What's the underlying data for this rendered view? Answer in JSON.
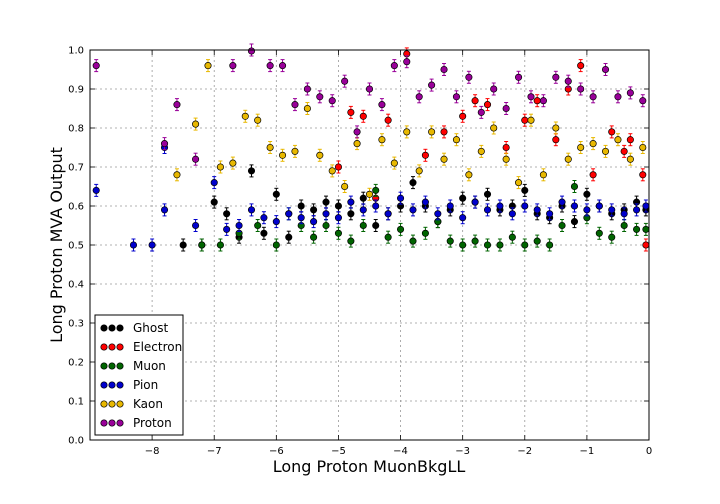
{
  "chart_data": {
    "type": "scatter",
    "xlabel": "Long Proton MuonBkgLL",
    "ylabel": "Long Proton MVA Output",
    "xlim": [
      -9.0,
      0.0
    ],
    "ylim": [
      0.0,
      1.0
    ],
    "xticks": [
      -8,
      -7,
      -6,
      -5,
      -4,
      -3,
      -2,
      -1,
      0
    ],
    "yticks": [
      0.0,
      0.1,
      0.2,
      0.3,
      0.4,
      0.5,
      0.6,
      0.7,
      0.8,
      0.9,
      1.0
    ],
    "xtick_labels": [
      "−8",
      "−7",
      "−6",
      "−5",
      "−4",
      "−3",
      "−2",
      "−1",
      "0"
    ],
    "ytick_labels": [
      "0.0",
      "0.1",
      "0.2",
      "0.3",
      "0.4",
      "0.5",
      "0.6",
      "0.7",
      "0.8",
      "0.9",
      "1.0"
    ],
    "grid": true,
    "legend_position": "lower-left",
    "series": [
      {
        "name": "Ghost",
        "color": "#000000",
        "points": [
          [
            -7.5,
            0.5
          ],
          [
            -7.2,
            0.5
          ],
          [
            -7.0,
            0.61
          ],
          [
            -6.8,
            0.58
          ],
          [
            -6.6,
            0.52
          ],
          [
            -6.4,
            0.69
          ],
          [
            -6.2,
            0.53
          ],
          [
            -6.0,
            0.63
          ],
          [
            -5.8,
            0.52
          ],
          [
            -5.6,
            0.6
          ],
          [
            -5.4,
            0.59
          ],
          [
            -5.2,
            0.61
          ],
          [
            -5.0,
            0.6
          ],
          [
            -4.8,
            0.58
          ],
          [
            -4.6,
            0.62
          ],
          [
            -4.4,
            0.55
          ],
          [
            -4.2,
            0.58
          ],
          [
            -4.0,
            0.6
          ],
          [
            -3.8,
            0.66
          ],
          [
            -3.6,
            0.6
          ],
          [
            -3.4,
            0.56
          ],
          [
            -3.2,
            0.59
          ],
          [
            -3.0,
            0.62
          ],
          [
            -2.8,
            0.61
          ],
          [
            -2.6,
            0.63
          ],
          [
            -2.4,
            0.59
          ],
          [
            -2.2,
            0.6
          ],
          [
            -2.0,
            0.64
          ],
          [
            -1.8,
            0.58
          ],
          [
            -1.6,
            0.57
          ],
          [
            -1.4,
            0.6
          ],
          [
            -1.2,
            0.56
          ],
          [
            -1.0,
            0.63
          ],
          [
            -0.8,
            0.6
          ],
          [
            -0.6,
            0.58
          ],
          [
            -0.4,
            0.59
          ],
          [
            -0.2,
            0.61
          ],
          [
            -0.05,
            0.59
          ]
        ]
      },
      {
        "name": "Electron",
        "color": "#ff0000",
        "points": [
          [
            -5.0,
            0.7
          ],
          [
            -4.8,
            0.84
          ],
          [
            -4.6,
            0.83
          ],
          [
            -4.4,
            0.62
          ],
          [
            -4.2,
            0.82
          ],
          [
            -3.9,
            0.99
          ],
          [
            -3.6,
            0.73
          ],
          [
            -3.3,
            0.79
          ],
          [
            -3.0,
            0.83
          ],
          [
            -2.8,
            0.87
          ],
          [
            -2.6,
            0.86
          ],
          [
            -2.3,
            0.75
          ],
          [
            -2.0,
            0.82
          ],
          [
            -1.8,
            0.87
          ],
          [
            -1.5,
            0.77
          ],
          [
            -1.3,
            0.9
          ],
          [
            -1.1,
            0.96
          ],
          [
            -0.9,
            0.68
          ],
          [
            -0.6,
            0.79
          ],
          [
            -0.4,
            0.74
          ],
          [
            -0.3,
            0.77
          ],
          [
            -0.1,
            0.68
          ],
          [
            -0.05,
            0.5
          ]
        ]
      },
      {
        "name": "Muon",
        "color": "#006400",
        "points": [
          [
            -7.2,
            0.5
          ],
          [
            -6.9,
            0.5
          ],
          [
            -6.6,
            0.53
          ],
          [
            -6.3,
            0.55
          ],
          [
            -6.0,
            0.5
          ],
          [
            -5.8,
            0.58
          ],
          [
            -5.6,
            0.55
          ],
          [
            -5.4,
            0.52
          ],
          [
            -5.2,
            0.55
          ],
          [
            -5.0,
            0.53
          ],
          [
            -4.8,
            0.51
          ],
          [
            -4.6,
            0.55
          ],
          [
            -4.4,
            0.64
          ],
          [
            -4.2,
            0.52
          ],
          [
            -4.0,
            0.54
          ],
          [
            -3.8,
            0.51
          ],
          [
            -3.6,
            0.53
          ],
          [
            -3.4,
            0.56
          ],
          [
            -3.2,
            0.51
          ],
          [
            -3.0,
            0.5
          ],
          [
            -2.8,
            0.51
          ],
          [
            -2.6,
            0.5
          ],
          [
            -2.4,
            0.5
          ],
          [
            -2.2,
            0.52
          ],
          [
            -2.0,
            0.5
          ],
          [
            -1.8,
            0.51
          ],
          [
            -1.6,
            0.5
          ],
          [
            -1.4,
            0.55
          ],
          [
            -1.2,
            0.65
          ],
          [
            -1.0,
            0.57
          ],
          [
            -0.8,
            0.53
          ],
          [
            -0.6,
            0.52
          ],
          [
            -0.4,
            0.55
          ],
          [
            -0.2,
            0.54
          ],
          [
            -0.05,
            0.54
          ]
        ]
      },
      {
        "name": "Pion",
        "color": "#0000cc",
        "points": [
          [
            -8.9,
            0.64
          ],
          [
            -8.3,
            0.5
          ],
          [
            -8.0,
            0.5
          ],
          [
            -7.8,
            0.59
          ],
          [
            -7.3,
            0.55
          ],
          [
            -7.0,
            0.66
          ],
          [
            -6.8,
            0.54
          ],
          [
            -6.6,
            0.55
          ],
          [
            -6.4,
            0.59
          ],
          [
            -6.2,
            0.57
          ],
          [
            -6.0,
            0.56
          ],
          [
            -5.8,
            0.58
          ],
          [
            -5.6,
            0.57
          ],
          [
            -5.4,
            0.56
          ],
          [
            -5.2,
            0.58
          ],
          [
            -5.0,
            0.57
          ],
          [
            -4.8,
            0.61
          ],
          [
            -4.6,
            0.59
          ],
          [
            -4.4,
            0.6
          ],
          [
            -4.2,
            0.58
          ],
          [
            -4.0,
            0.62
          ],
          [
            -3.8,
            0.59
          ],
          [
            -3.6,
            0.61
          ],
          [
            -3.4,
            0.58
          ],
          [
            -3.2,
            0.6
          ],
          [
            -3.0,
            0.57
          ],
          [
            -2.8,
            0.61
          ],
          [
            -2.6,
            0.59
          ],
          [
            -2.4,
            0.6
          ],
          [
            -2.2,
            0.58
          ],
          [
            -2.0,
            0.6
          ],
          [
            -1.8,
            0.59
          ],
          [
            -1.6,
            0.58
          ],
          [
            -1.4,
            0.61
          ],
          [
            -1.2,
            0.6
          ],
          [
            -1.0,
            0.59
          ],
          [
            -0.8,
            0.6
          ],
          [
            -0.6,
            0.59
          ],
          [
            -0.4,
            0.58
          ],
          [
            -0.2,
            0.59
          ],
          [
            -0.05,
            0.6
          ],
          [
            -7.8,
            0.75
          ]
        ]
      },
      {
        "name": "Kaon",
        "color": "#e8b800",
        "points": [
          [
            -7.6,
            0.68
          ],
          [
            -7.3,
            0.81
          ],
          [
            -7.1,
            0.96
          ],
          [
            -6.9,
            0.7
          ],
          [
            -6.7,
            0.71
          ],
          [
            -6.5,
            0.83
          ],
          [
            -6.3,
            0.82
          ],
          [
            -6.1,
            0.75
          ],
          [
            -5.9,
            0.73
          ],
          [
            -5.7,
            0.74
          ],
          [
            -5.5,
            0.85
          ],
          [
            -5.3,
            0.73
          ],
          [
            -5.1,
            0.69
          ],
          [
            -4.9,
            0.65
          ],
          [
            -4.7,
            0.76
          ],
          [
            -4.5,
            0.63
          ],
          [
            -4.3,
            0.77
          ],
          [
            -4.1,
            0.71
          ],
          [
            -3.9,
            0.79
          ],
          [
            -3.7,
            0.69
          ],
          [
            -3.5,
            0.79
          ],
          [
            -3.3,
            0.72
          ],
          [
            -3.1,
            0.77
          ],
          [
            -2.9,
            0.68
          ],
          [
            -2.7,
            0.74
          ],
          [
            -2.5,
            0.8
          ],
          [
            -2.3,
            0.72
          ],
          [
            -2.1,
            0.66
          ],
          [
            -1.9,
            0.82
          ],
          [
            -1.7,
            0.68
          ],
          [
            -1.5,
            0.8
          ],
          [
            -1.3,
            0.72
          ],
          [
            -1.1,
            0.75
          ],
          [
            -0.9,
            0.76
          ],
          [
            -0.7,
            0.74
          ],
          [
            -0.5,
            0.77
          ],
          [
            -0.3,
            0.72
          ],
          [
            -0.1,
            0.75
          ]
        ]
      },
      {
        "name": "Proton",
        "color": "#990099",
        "points": [
          [
            -8.9,
            0.96
          ],
          [
            -7.8,
            0.76
          ],
          [
            -7.6,
            0.86
          ],
          [
            -7.3,
            0.72
          ],
          [
            -6.7,
            0.96
          ],
          [
            -6.4,
            1.0
          ],
          [
            -6.1,
            0.96
          ],
          [
            -5.9,
            0.96
          ],
          [
            -5.7,
            0.86
          ],
          [
            -5.5,
            0.9
          ],
          [
            -5.3,
            0.88
          ],
          [
            -5.1,
            0.87
          ],
          [
            -4.9,
            0.92
          ],
          [
            -4.7,
            0.79
          ],
          [
            -4.5,
            0.9
          ],
          [
            -4.3,
            0.86
          ],
          [
            -4.1,
            0.96
          ],
          [
            -3.9,
            0.97
          ],
          [
            -3.7,
            0.88
          ],
          [
            -3.5,
            0.91
          ],
          [
            -3.3,
            0.95
          ],
          [
            -3.1,
            0.88
          ],
          [
            -2.9,
            0.93
          ],
          [
            -2.7,
            0.84
          ],
          [
            -2.5,
            0.9
          ],
          [
            -2.3,
            0.85
          ],
          [
            -2.1,
            0.93
          ],
          [
            -1.9,
            0.88
          ],
          [
            -1.7,
            0.87
          ],
          [
            -1.5,
            0.93
          ],
          [
            -1.3,
            0.92
          ],
          [
            -1.1,
            0.9
          ],
          [
            -0.9,
            0.88
          ],
          [
            -0.7,
            0.95
          ],
          [
            -0.5,
            0.88
          ],
          [
            -0.3,
            0.89
          ],
          [
            -0.1,
            0.87
          ]
        ]
      }
    ]
  }
}
